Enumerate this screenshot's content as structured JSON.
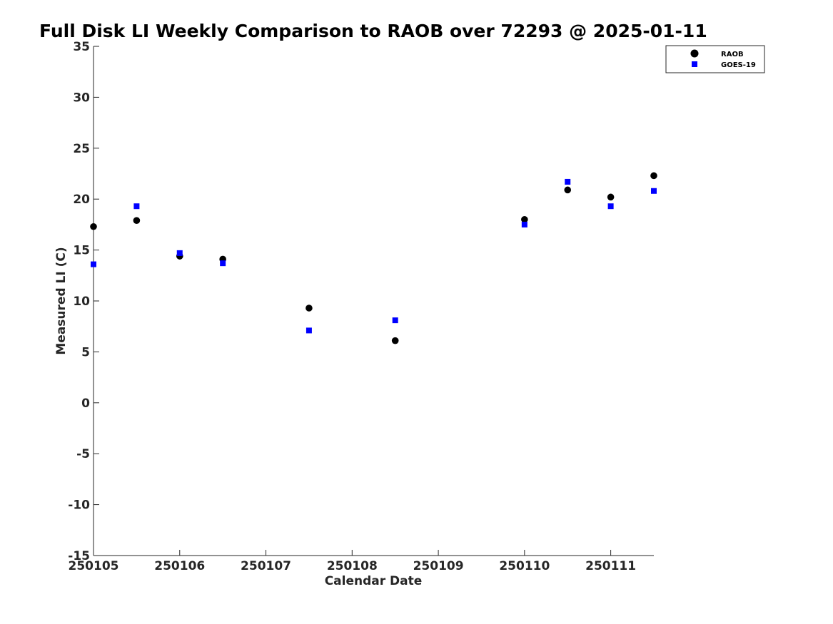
{
  "chart_data": {
    "type": "scatter",
    "title": "Full Disk LI Weekly Comparison to RAOB over 72293 @ 2025-01-11",
    "xlabel": "Calendar Date",
    "ylabel": "Measured LI (C)",
    "x_ticks": [
      "250105",
      "250106",
      "250107",
      "250108",
      "250109",
      "250110",
      "250111"
    ],
    "xlim": [
      "250105",
      "250111.5"
    ],
    "ylim": [
      -15,
      35
    ],
    "y_ticks": [
      "-15",
      "-10",
      "-5",
      "0",
      "5",
      "10",
      "15",
      "20",
      "25",
      "30",
      "35"
    ],
    "grid": false,
    "legend_position": "top-right",
    "series": [
      {
        "name": "RAOB",
        "marker": "circle",
        "color": "#000000",
        "points": [
          {
            "x": "250105",
            "y": 17.3
          },
          {
            "x": "250105.5",
            "y": 17.9
          },
          {
            "x": "250106",
            "y": 14.4
          },
          {
            "x": "250106.5",
            "y": 14.1
          },
          {
            "x": "250107.5",
            "y": 9.3
          },
          {
            "x": "250108.5",
            "y": 6.1
          },
          {
            "x": "250110",
            "y": 18.0
          },
          {
            "x": "250110.5",
            "y": 20.9
          },
          {
            "x": "250111",
            "y": 20.2
          },
          {
            "x": "250111.5",
            "y": 22.3
          }
        ]
      },
      {
        "name": "GOES-19",
        "marker": "square",
        "color": "#0000ff",
        "points": [
          {
            "x": "250105",
            "y": 13.6
          },
          {
            "x": "250105.5",
            "y": 19.3
          },
          {
            "x": "250106",
            "y": 14.7
          },
          {
            "x": "250106.5",
            "y": 13.7
          },
          {
            "x": "250107.5",
            "y": 7.1
          },
          {
            "x": "250108.5",
            "y": 8.1
          },
          {
            "x": "250110",
            "y": 17.5
          },
          {
            "x": "250110.5",
            "y": 21.7
          },
          {
            "x": "250111",
            "y": 19.3
          },
          {
            "x": "250111.5",
            "y": 20.8
          }
        ]
      }
    ]
  }
}
